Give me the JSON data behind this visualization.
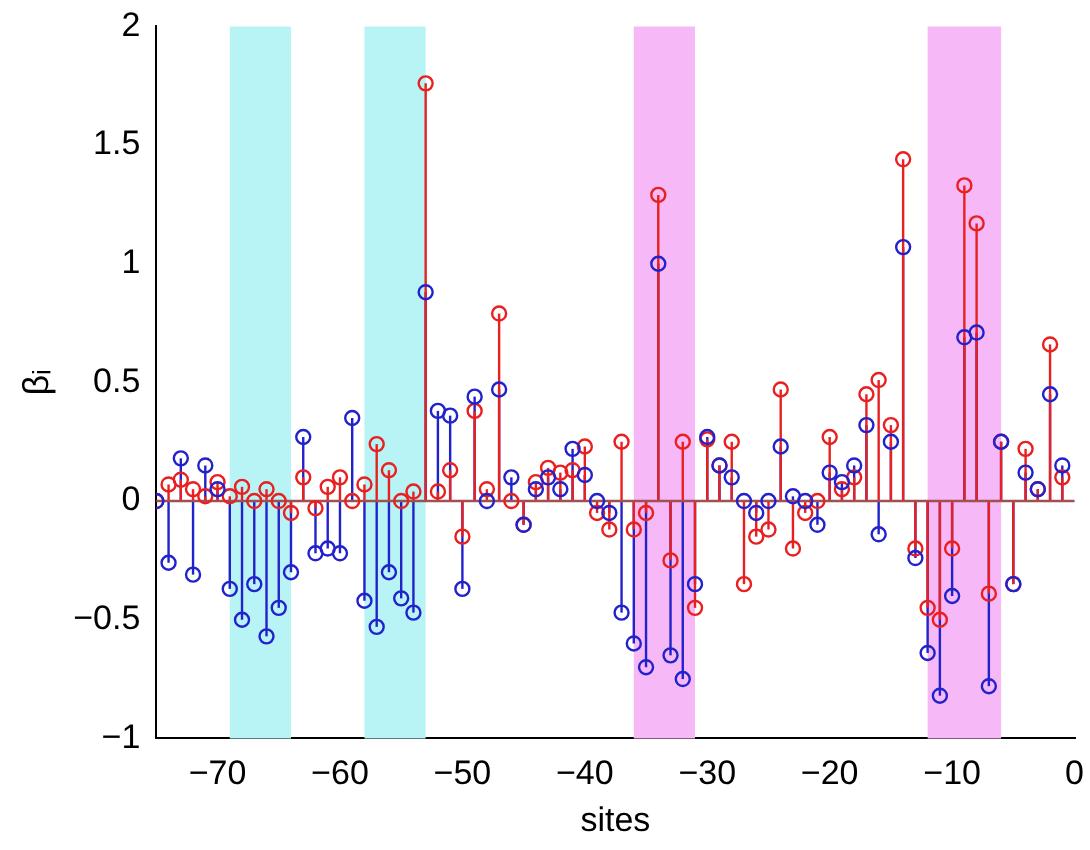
{
  "chart_data": {
    "type": "lollipop",
    "xlabel": "sites",
    "ylabel": "βᵢ",
    "xlim": [
      -75,
      0
    ],
    "xticks": [
      -70,
      -60,
      -50,
      -40,
      -30,
      -20,
      -10,
      0
    ],
    "ylim": [
      -1,
      2
    ],
    "yticks": [
      -1,
      -0.5,
      0,
      0.5,
      1,
      1.5,
      2
    ],
    "grid": false,
    "legend": false,
    "marker": "circle",
    "x": [
      -75,
      -74,
      -73,
      -72,
      -71,
      -70,
      -69,
      -68,
      -67,
      -66,
      -65,
      -64,
      -63,
      -62,
      -61,
      -60,
      -59,
      -58,
      -57,
      -56,
      -55,
      -54,
      -53,
      -52,
      -51,
      -50,
      -49,
      -48,
      -47,
      -46,
      -45,
      -44,
      -43,
      -42,
      -41,
      -40,
      -39,
      -38,
      -37,
      -36,
      -35,
      -34,
      -33,
      -32,
      -31,
      -30,
      -29,
      -28,
      -27,
      -26,
      -25,
      -24,
      -23,
      -22,
      -21,
      -20,
      -19,
      -18,
      -17,
      -16,
      -15,
      -14,
      -13,
      -12,
      -11,
      -10,
      -9,
      -8,
      -7,
      -6,
      -5,
      -4,
      -3,
      -2,
      -1
    ],
    "series": [
      {
        "color": "#2222cc",
        "values": [
          0.0,
          -0.26,
          0.18,
          -0.31,
          0.15,
          0.05,
          -0.37,
          -0.5,
          -0.35,
          -0.57,
          -0.45,
          -0.3,
          0.27,
          -0.22,
          -0.2,
          -0.22,
          0.35,
          -0.42,
          -0.53,
          -0.3,
          -0.41,
          -0.47,
          0.88,
          0.38,
          0.36,
          -0.37,
          0.44,
          0.0,
          0.47,
          0.1,
          -0.1,
          0.05,
          0.1,
          0.05,
          0.22,
          0.11,
          0.0,
          -0.05,
          -0.47,
          -0.6,
          -0.7,
          1.0,
          -0.65,
          -0.75,
          -0.35,
          0.27,
          0.15,
          0.1,
          0.0,
          -0.05,
          0.0,
          0.23,
          0.02,
          0.0,
          -0.1,
          0.12,
          0.08,
          0.15,
          0.32,
          -0.14,
          0.25,
          1.07,
          -0.24,
          -0.64,
          -0.82,
          -0.4,
          0.69,
          0.71,
          -0.78,
          0.25,
          -0.35,
          0.12,
          0.05,
          0.45,
          0.15
        ]
      },
      {
        "color": "#e82020",
        "values": [
          0.0,
          0.07,
          0.09,
          0.05,
          0.02,
          0.08,
          0.02,
          0.06,
          0.0,
          0.05,
          0.0,
          -0.05,
          0.1,
          -0.03,
          0.06,
          0.1,
          0.0,
          0.07,
          0.24,
          0.13,
          0.0,
          0.04,
          1.76,
          0.04,
          0.13,
          -0.15,
          0.38,
          0.05,
          0.79,
          0.0,
          -0.1,
          0.08,
          0.14,
          0.12,
          0.13,
          0.23,
          -0.05,
          -0.12,
          0.25,
          -0.12,
          -0.05,
          1.29,
          -0.25,
          0.25,
          -0.45,
          0.26,
          0.15,
          0.25,
          -0.35,
          -0.15,
          -0.12,
          0.47,
          -0.2,
          -0.05,
          0.0,
          0.27,
          0.05,
          0.1,
          0.45,
          0.51,
          0.32,
          1.44,
          -0.2,
          -0.45,
          -0.5,
          -0.2,
          1.33,
          1.17,
          -0.39,
          0.25,
          -0.35,
          0.22,
          0.05,
          0.66,
          0.1
        ]
      }
    ],
    "ref_lines": [
      {
        "axis": "y",
        "value": 0,
        "color": "#a05050"
      }
    ],
    "bands": [
      {
        "axis": "x",
        "from": -69,
        "to": -64,
        "color": "#b8f4f6"
      },
      {
        "axis": "x",
        "from": -58,
        "to": -53,
        "color": "#b8f4f6"
      },
      {
        "axis": "x",
        "from": -36,
        "to": -31,
        "color": "#f6b8f6"
      },
      {
        "axis": "x",
        "from": -12,
        "to": -6,
        "color": "#f6b8f6"
      }
    ]
  }
}
